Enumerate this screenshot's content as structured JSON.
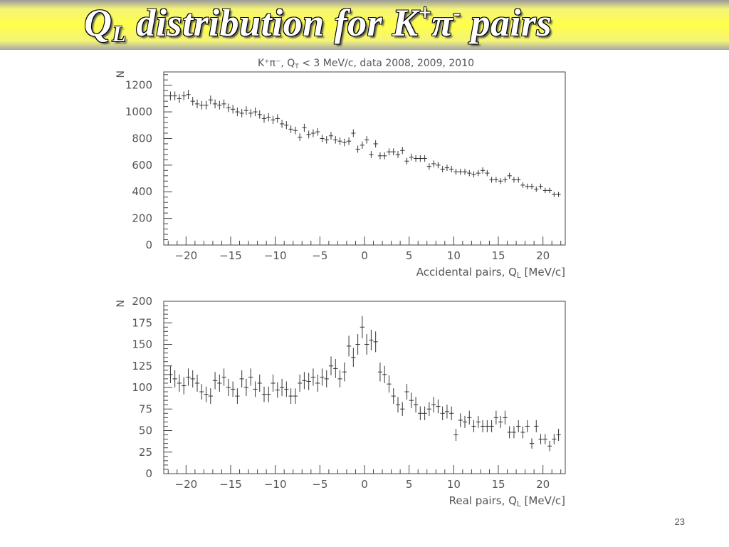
{
  "slide": {
    "title_main": "Q",
    "title_sub": "L",
    "title_mid": " distribution for K",
    "title_sup1": "+",
    "title_pi": "π",
    "title_sup2": "-",
    "title_tail": " pairs",
    "number": "23",
    "header_bar_color": "#ffff4a"
  },
  "chart_data": [
    {
      "type": "scatter",
      "style": "points with error bars",
      "title": "K⁺π⁻, Q_T < 3 MeV/c, data 2008, 2009, 2010",
      "xlabel": "Accidental pairs, Q_L [MeV/c]",
      "ylabel": "N",
      "xlim": [
        -22.5,
        22.5
      ],
      "ylim": [
        0,
        1300
      ],
      "xticks": [
        -20,
        -15,
        -10,
        -5,
        0,
        5,
        10,
        15,
        20
      ],
      "yticks": [
        0,
        200,
        400,
        600,
        800,
        1000,
        1200
      ],
      "xtick_labels": [
        "−20",
        "−15",
        "−10",
        "−5",
        "0",
        "5",
        "10",
        "15",
        "20"
      ],
      "ytick_labels": [
        "0",
        "200",
        "400",
        "600",
        "800",
        "1000",
        "1200"
      ],
      "marker_color": "#333333",
      "grid": false,
      "x": [
        -21.75,
        -21.25,
        -20.75,
        -20.25,
        -19.75,
        -19.25,
        -18.75,
        -18.25,
        -17.75,
        -17.25,
        -16.75,
        -16.25,
        -15.75,
        -15.25,
        -14.75,
        -14.25,
        -13.75,
        -13.25,
        -12.75,
        -12.25,
        -11.75,
        -11.25,
        -10.75,
        -10.25,
        -9.75,
        -9.25,
        -8.75,
        -8.25,
        -7.75,
        -7.25,
        -6.75,
        -6.25,
        -5.75,
        -5.25,
        -4.75,
        -4.25,
        -3.75,
        -3.25,
        -2.75,
        -2.25,
        -1.75,
        -1.25,
        -0.75,
        -0.25,
        0.25,
        0.75,
        1.25,
        1.75,
        2.25,
        2.75,
        3.25,
        3.75,
        4.25,
        4.75,
        5.25,
        5.75,
        6.25,
        6.75,
        7.25,
        7.75,
        8.25,
        8.75,
        9.25,
        9.75,
        10.25,
        10.75,
        11.25,
        11.75,
        12.25,
        12.75,
        13.25,
        13.75,
        14.25,
        14.75,
        15.25,
        15.75,
        16.25,
        16.75,
        17.25,
        17.75,
        18.25,
        18.75,
        19.25,
        19.75,
        20.25,
        20.75,
        21.25,
        21.75
      ],
      "y": [
        1120,
        1120,
        1100,
        1120,
        1130,
        1080,
        1060,
        1050,
        1050,
        1090,
        1060,
        1050,
        1060,
        1030,
        1020,
        1000,
        990,
        1010,
        990,
        1000,
        980,
        950,
        960,
        940,
        950,
        910,
        900,
        870,
        860,
        810,
        880,
        830,
        840,
        850,
        800,
        790,
        820,
        790,
        780,
        770,
        780,
        840,
        720,
        750,
        790,
        680,
        760,
        670,
        670,
        700,
        700,
        680,
        710,
        630,
        660,
        650,
        650,
        650,
        590,
        610,
        600,
        570,
        580,
        570,
        550,
        550,
        550,
        540,
        530,
        540,
        560,
        540,
        490,
        490,
        480,
        490,
        520,
        490,
        490,
        450,
        440,
        440,
        420,
        440,
        410,
        410,
        380,
        380
      ],
      "yerr": [
        33,
        33,
        33,
        33,
        34,
        33,
        33,
        32,
        32,
        33,
        33,
        32,
        33,
        32,
        32,
        32,
        31,
        32,
        31,
        32,
        31,
        31,
        31,
        31,
        31,
        30,
        30,
        29,
        29,
        28,
        30,
        29,
        29,
        29,
        28,
        28,
        29,
        28,
        28,
        28,
        28,
        29,
        27,
        27,
        28,
        26,
        28,
        26,
        26,
        26,
        26,
        26,
        27,
        25,
        26,
        25,
        25,
        25,
        24,
        25,
        24,
        24,
        24,
        24,
        23,
        23,
        23,
        23,
        23,
        23,
        24,
        23,
        22,
        22,
        22,
        22,
        23,
        22,
        22,
        21,
        21,
        21,
        20,
        21,
        20,
        20,
        19,
        19
      ]
    },
    {
      "type": "scatter",
      "style": "points with error bars",
      "xlabel": "Real pairs, Q_L [MeV/c]",
      "ylabel": "N",
      "xlim": [
        -22.5,
        22.5
      ],
      "ylim": [
        0,
        200
      ],
      "xticks": [
        -20,
        -15,
        -10,
        -5,
        0,
        5,
        10,
        15,
        20
      ],
      "yticks": [
        0,
        25,
        50,
        75,
        100,
        125,
        150,
        175,
        200
      ],
      "xtick_labels": [
        "−20",
        "−15",
        "−10",
        "−5",
        "0",
        "5",
        "10",
        "15",
        "20"
      ],
      "ytick_labels": [
        "0",
        "25",
        "50",
        "75",
        "100",
        "125",
        "150",
        "175",
        "200"
      ],
      "marker_color": "#333333",
      "grid": false,
      "x": [
        -21.75,
        -21.25,
        -20.75,
        -20.25,
        -19.75,
        -19.25,
        -18.75,
        -18.25,
        -17.75,
        -17.25,
        -16.75,
        -16.25,
        -15.75,
        -15.25,
        -14.75,
        -14.25,
        -13.75,
        -13.25,
        -12.75,
        -12.25,
        -11.75,
        -11.25,
        -10.75,
        -10.25,
        -9.75,
        -9.25,
        -8.75,
        -8.25,
        -7.75,
        -7.25,
        -6.75,
        -6.25,
        -5.75,
        -5.25,
        -4.75,
        -4.25,
        -3.75,
        -3.25,
        -2.75,
        -2.25,
        -1.75,
        -1.25,
        -0.75,
        -0.25,
        0.25,
        0.75,
        1.25,
        1.75,
        2.25,
        2.75,
        3.25,
        3.75,
        4.25,
        4.75,
        5.25,
        5.75,
        6.25,
        6.75,
        7.25,
        7.75,
        8.25,
        8.75,
        9.25,
        9.75,
        10.25,
        10.75,
        11.25,
        11.75,
        12.25,
        12.75,
        13.25,
        13.75,
        14.25,
        14.75,
        15.25,
        15.75,
        16.25,
        16.75,
        17.25,
        17.75,
        18.25,
        18.75,
        19.25,
        19.75,
        20.25,
        20.75,
        21.25,
        21.75
      ],
      "y": [
        115,
        110,
        105,
        102,
        112,
        110,
        105,
        95,
        92,
        90,
        108,
        105,
        112,
        100,
        98,
        90,
        110,
        100,
        112,
        98,
        105,
        92,
        92,
        105,
        97,
        100,
        98,
        90,
        90,
        105,
        108,
        107,
        112,
        105,
        112,
        110,
        125,
        122,
        110,
        118,
        148,
        135,
        150,
        170,
        150,
        155,
        153,
        118,
        115,
        104,
        90,
        80,
        75,
        95,
        85,
        80,
        70,
        70,
        75,
        80,
        78,
        70,
        72,
        70,
        45,
        62,
        60,
        65,
        55,
        60,
        55,
        55,
        55,
        65,
        60,
        65,
        48,
        48,
        55,
        48,
        55,
        35,
        55,
        40,
        40,
        32,
        40,
        45
      ],
      "yerr": [
        10,
        10,
        10,
        10,
        10,
        10,
        10,
        9,
        9,
        9,
        10,
        10,
        10,
        10,
        9,
        9,
        10,
        10,
        10,
        9,
        10,
        9,
        9,
        10,
        9,
        10,
        9,
        9,
        9,
        10,
        10,
        10,
        10,
        10,
        10,
        10,
        11,
        11,
        10,
        11,
        12,
        11,
        12,
        13,
        12,
        12,
        12,
        11,
        10,
        10,
        9,
        9,
        8,
        9,
        9,
        9,
        8,
        8,
        8,
        9,
        8,
        8,
        8,
        8,
        7,
        8,
        7,
        8,
        7,
        7,
        7,
        7,
        7,
        8,
        7,
        8,
        7,
        7,
        7,
        7,
        7,
        6,
        7,
        6,
        6,
        6,
        6,
        7
      ]
    }
  ]
}
